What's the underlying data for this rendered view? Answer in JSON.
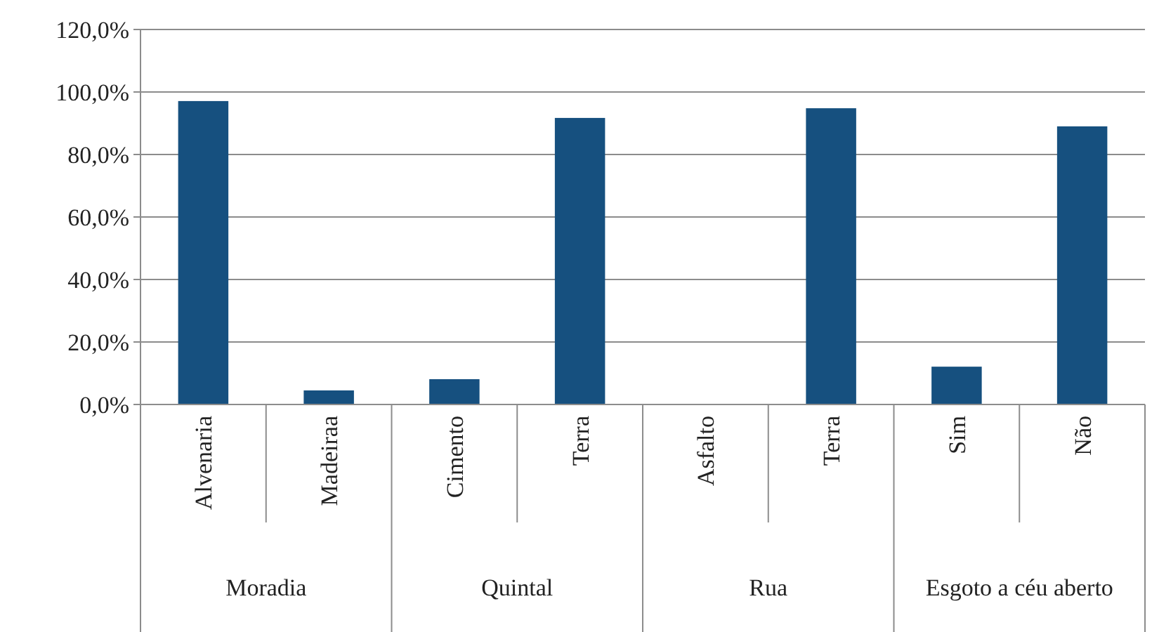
{
  "chart_data": {
    "type": "bar",
    "categories": [
      "Alvenaria",
      "Madeiraa",
      "Cimento",
      "Terra",
      "Asfalto",
      "Terra",
      "Sim",
      "Não"
    ],
    "values": [
      97.1,
      4.5,
      8.1,
      91.7,
      0,
      94.8,
      12.1,
      89.0
    ],
    "color": "#16507f",
    "ylim": [
      0,
      120
    ],
    "yticks": [
      {
        "value": 0,
        "label": "0,0%"
      },
      {
        "value": 20,
        "label": "20,0%"
      },
      {
        "value": 40,
        "label": "40,0%"
      },
      {
        "value": 60,
        "label": "60,0%"
      },
      {
        "value": 80,
        "label": "80,0%"
      },
      {
        "value": 100,
        "label": "100,0%"
      },
      {
        "value": 120,
        "label": "120,0%"
      }
    ],
    "grid": "y",
    "annotations": [
      "Moradia",
      "Quintal",
      "Rua",
      "Esgoto a céu aberto"
    ]
  }
}
